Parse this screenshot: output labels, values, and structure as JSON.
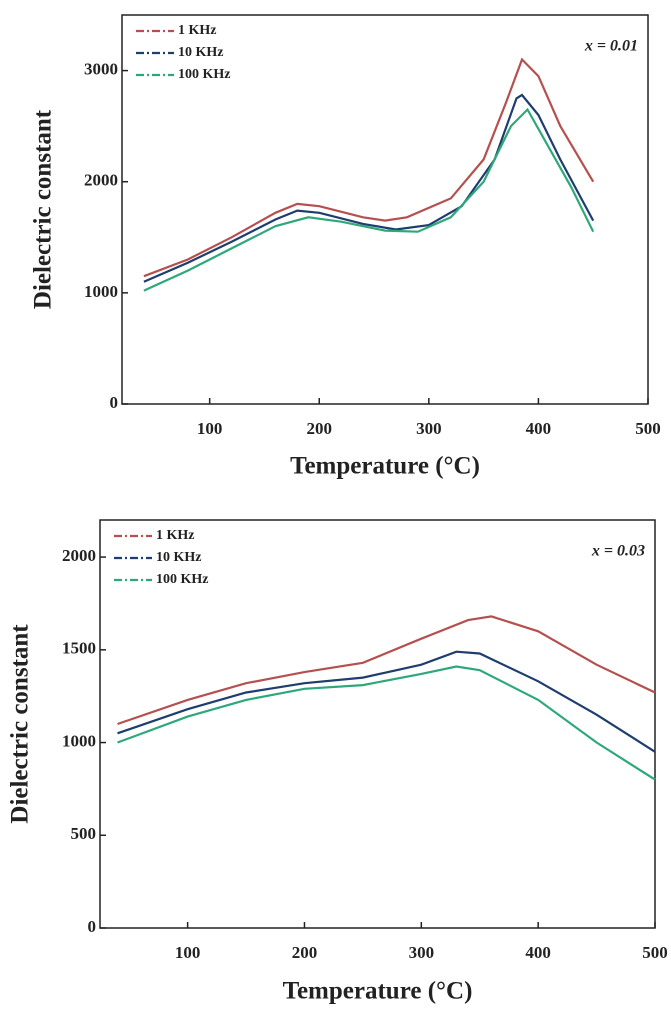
{
  "chart_data": [
    {
      "type": "line",
      "annotation": "x = 0.01",
      "xlabel": "Temperature (°C)",
      "ylabel": "Dielectric constant",
      "xlim": [
        20,
        500
      ],
      "ylim": [
        0,
        3500
      ],
      "xticks": [
        100,
        200,
        300,
        400,
        500
      ],
      "yticks": [
        0,
        1000,
        2000,
        3000
      ],
      "legend": "top-left",
      "series": [
        {
          "name": "1 KHz",
          "color": "#b5504f",
          "x": [
            40,
            80,
            120,
            160,
            180,
            200,
            240,
            260,
            280,
            320,
            350,
            370,
            385,
            400,
            420,
            450
          ],
          "values": [
            1150,
            1300,
            1500,
            1720,
            1800,
            1780,
            1680,
            1650,
            1680,
            1850,
            2200,
            2700,
            3100,
            2950,
            2500,
            2000
          ]
        },
        {
          "name": "10 KHz",
          "color": "#1f3d6e",
          "x": [
            40,
            80,
            120,
            160,
            180,
            200,
            240,
            270,
            300,
            330,
            360,
            380,
            385,
            400,
            420,
            450
          ],
          "values": [
            1100,
            1270,
            1460,
            1660,
            1740,
            1720,
            1620,
            1570,
            1610,
            1780,
            2200,
            2750,
            2780,
            2600,
            2200,
            1650
          ]
        },
        {
          "name": "100 KHz",
          "color": "#2ea87a",
          "x": [
            40,
            80,
            120,
            160,
            190,
            220,
            260,
            290,
            320,
            350,
            375,
            390,
            410,
            430,
            450
          ],
          "values": [
            1020,
            1200,
            1400,
            1600,
            1680,
            1640,
            1560,
            1550,
            1680,
            2000,
            2500,
            2650,
            2300,
            1950,
            1550
          ]
        }
      ]
    },
    {
      "type": "line",
      "annotation": "x = 0.03",
      "xlabel": "Temperature (°C)",
      "ylabel": "Dielectric constant",
      "xlim": [
        25,
        500
      ],
      "ylim": [
        0,
        2200
      ],
      "xticks": [
        100,
        200,
        300,
        400,
        500
      ],
      "yticks": [
        0,
        500,
        1000,
        1500,
        2000
      ],
      "legend": "top-left",
      "series": [
        {
          "name": "1 KHz",
          "color": "#b5504f",
          "x": [
            40,
            100,
            150,
            200,
            250,
            300,
            340,
            360,
            400,
            450,
            500
          ],
          "values": [
            1100,
            1230,
            1320,
            1380,
            1430,
            1560,
            1660,
            1680,
            1600,
            1420,
            1270
          ]
        },
        {
          "name": "10 KHz",
          "color": "#1f3d6e",
          "x": [
            40,
            100,
            150,
            200,
            250,
            300,
            330,
            350,
            400,
            450,
            500
          ],
          "values": [
            1050,
            1180,
            1270,
            1320,
            1350,
            1420,
            1490,
            1480,
            1330,
            1150,
            950
          ]
        },
        {
          "name": "100 KHz",
          "color": "#2ea87a",
          "x": [
            40,
            100,
            150,
            200,
            250,
            300,
            330,
            350,
            400,
            450,
            500
          ],
          "values": [
            1000,
            1140,
            1230,
            1290,
            1310,
            1370,
            1410,
            1390,
            1230,
            1000,
            800
          ]
        }
      ]
    }
  ]
}
